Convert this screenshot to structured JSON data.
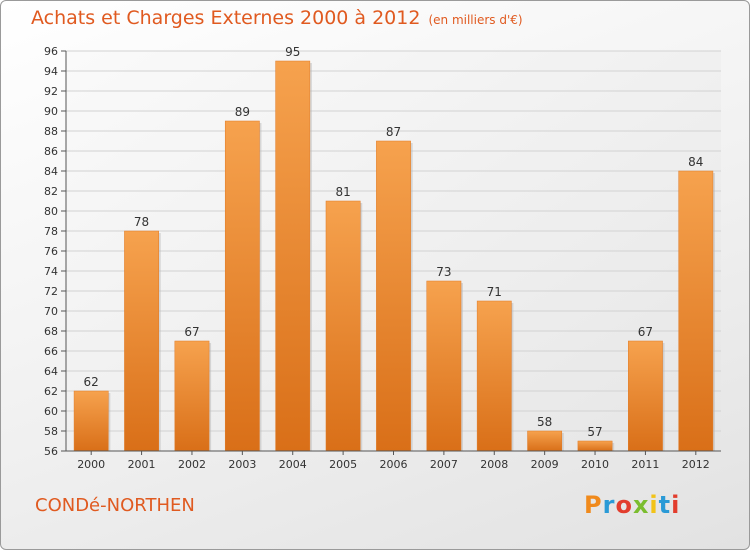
{
  "title": "Achats et Charges Externes 2000 à 2012",
  "subtitle": "(en milliers d'€)",
  "commune": "CONDé-NORTHEN",
  "logo": {
    "letters": [
      "P",
      "r",
      "o",
      "x",
      "i",
      "t",
      "i"
    ],
    "colors": [
      "#f08a1c",
      "#2a9ad6",
      "#e23d2d",
      "#7bbd2f",
      "#f2c318",
      "#2a9ad6",
      "#e23d2d"
    ]
  },
  "chart_data": {
    "type": "bar",
    "categories": [
      "2000",
      "2001",
      "2002",
      "2003",
      "2004",
      "2005",
      "2006",
      "2007",
      "2008",
      "2009",
      "2010",
      "2011",
      "2012"
    ],
    "values": [
      62,
      78,
      67,
      89,
      95,
      81,
      87,
      73,
      71,
      58,
      57,
      67,
      84
    ],
    "ylim": [
      56,
      96
    ],
    "yticks": [
      56,
      58,
      60,
      62,
      64,
      66,
      68,
      70,
      72,
      74,
      76,
      78,
      80,
      82,
      84,
      86,
      88,
      90,
      92,
      94,
      96
    ],
    "grid": true,
    "bar_color": "#f08a32"
  }
}
